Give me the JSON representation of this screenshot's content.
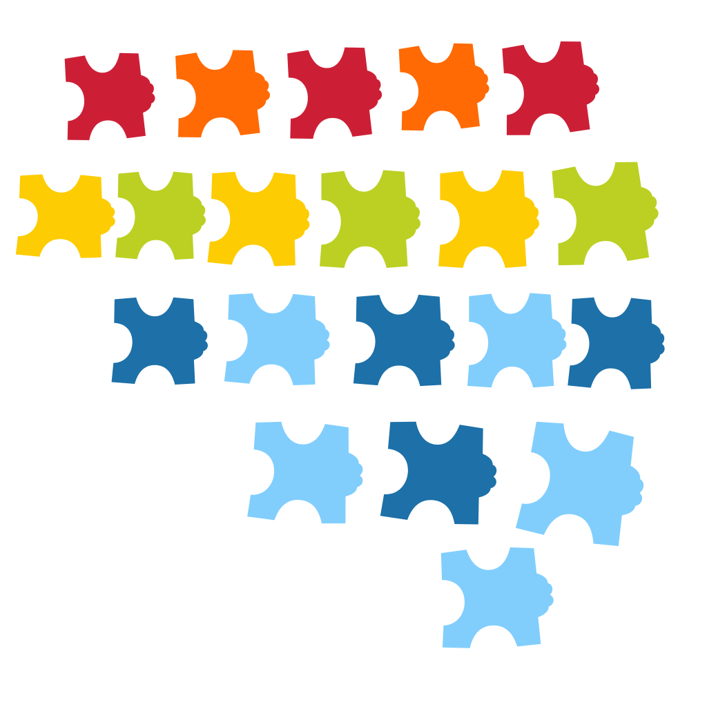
{
  "palette": {
    "red": "#CC1F36",
    "orange": "#FF6A04",
    "yellow": "#FDCC02",
    "lime": "#BBD022",
    "blue": "#1D70A8",
    "light_blue": "#81CEFD"
  },
  "pieces": [
    {
      "color": "red"
    },
    {
      "color": "orange"
    },
    {
      "color": "red"
    },
    {
      "color": "orange"
    },
    {
      "color": "red"
    },
    {
      "color": "yellow"
    },
    {
      "color": "lime"
    },
    {
      "color": "yellow"
    },
    {
      "color": "lime"
    },
    {
      "color": "yellow"
    },
    {
      "color": "lime"
    },
    {
      "color": "blue"
    },
    {
      "color": "light_blue"
    },
    {
      "color": "blue"
    },
    {
      "color": "light_blue"
    },
    {
      "color": "blue"
    },
    {
      "color": "light_blue"
    },
    {
      "color": "blue"
    },
    {
      "color": "light_blue"
    },
    {
      "color": "light_blue"
    }
  ]
}
